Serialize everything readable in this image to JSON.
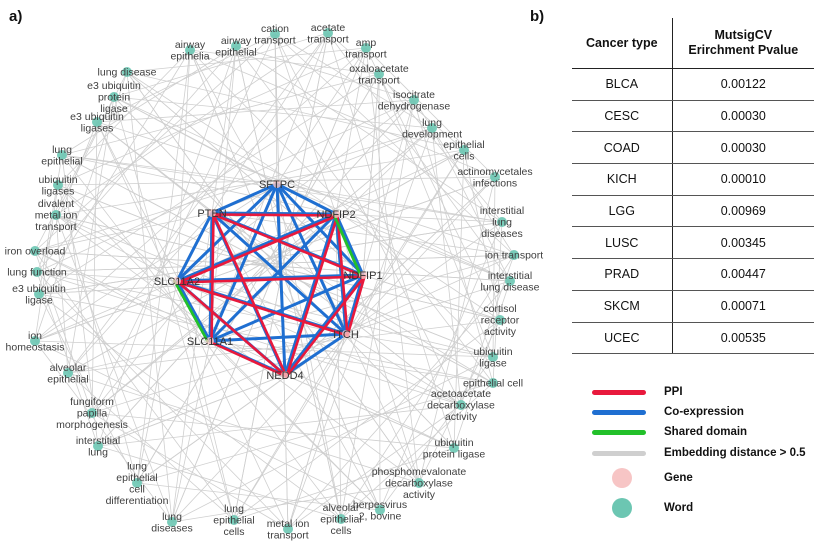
{
  "panel_a_label": "a)",
  "panel_b_label": "b)",
  "network": {
    "genes": [
      {
        "id": "SFTPC",
        "label": "SFTPC"
      },
      {
        "id": "PTEN",
        "label": "PTEN"
      },
      {
        "id": "NDFIP2",
        "label": "NDFIP2"
      },
      {
        "id": "NDFIP1",
        "label": "NDFIP1"
      },
      {
        "id": "SLC11A2",
        "label": "SLC11A2"
      },
      {
        "id": "SLC11A1",
        "label": "SLC11A1"
      },
      {
        "id": "ITCH",
        "label": "ITCH"
      },
      {
        "id": "NEDD4",
        "label": "NEDD4"
      }
    ],
    "words": [
      {
        "label": "cation\ntransport"
      },
      {
        "label": "acetate\ntransport"
      },
      {
        "label": "amp\ntransport"
      },
      {
        "label": "oxaloacetate\ntransport"
      },
      {
        "label": "isocitrate\ndehydrogenase"
      },
      {
        "label": "lung\ndevelopment"
      },
      {
        "label": "epithelial\ncells"
      },
      {
        "label": "actinomycetales\ninfections"
      },
      {
        "label": "interstitial\nlung\ndiseases"
      },
      {
        "label": "ion transport"
      },
      {
        "label": "interstitial\nlung disease"
      },
      {
        "label": "cortisol\nreceptor\nactivity"
      },
      {
        "label": "ubiquitin\nligase"
      },
      {
        "label": "epithelial cell"
      },
      {
        "label": "acetoacetate\ndecarboxylase\nactivity"
      },
      {
        "label": "ubiquitin\nprotein ligase"
      },
      {
        "label": "phosphomevalonate\ndecarboxylase\nactivity"
      },
      {
        "label": "herpesvirus\n2, bovine"
      },
      {
        "label": "alveolar\nepithelial\ncells"
      },
      {
        "label": "metal ion\ntransport"
      },
      {
        "label": "lung\nepithelial\ncells"
      },
      {
        "label": "lung\ndiseases"
      },
      {
        "label": "lung\nepithelial\ncell\ndifferentiation"
      },
      {
        "label": "interstitial\nlung"
      },
      {
        "label": "fungiform\npapilla\nmorphogenesis"
      },
      {
        "label": "alveolar\nepithelial"
      },
      {
        "label": "ion\nhomeostasis"
      },
      {
        "label": "e3 ubiquitin\nligase"
      },
      {
        "label": "lung function"
      },
      {
        "label": "iron overload"
      },
      {
        "label": "divalent\nmetal ion\ntransport"
      },
      {
        "label": "ubiquitin\nligases"
      },
      {
        "label": "lung\nepithelial"
      },
      {
        "label": "e3 ubiquitin\nligases"
      },
      {
        "label": "e3 ubiquitin\nprotein\nligase"
      },
      {
        "label": "lung disease"
      },
      {
        "label": "airway\nepithelia"
      },
      {
        "label": "airway\nepithelial"
      }
    ]
  },
  "table": {
    "headers": [
      "Cancer type",
      "MutsigCV\nErirchment Pvalue"
    ],
    "rows": [
      [
        "BLCA",
        "0.00122"
      ],
      [
        "CESC",
        "0.00030"
      ],
      [
        "COAD",
        "0.00030"
      ],
      [
        "KICH",
        "0.00010"
      ],
      [
        "LGG",
        "0.00969"
      ],
      [
        "LUSC",
        "0.00345"
      ],
      [
        "PRAD",
        "0.00447"
      ],
      [
        "SKCM",
        "0.00071"
      ],
      [
        "UCEC",
        "0.00535"
      ]
    ]
  },
  "legend": [
    {
      "label": "PPI",
      "kind": "line",
      "color": "#e8193c"
    },
    {
      "label": "Co-expression",
      "kind": "line",
      "color": "#1f6fd1"
    },
    {
      "label": "Shared domain",
      "kind": "line",
      "color": "#22c02a"
    },
    {
      "label": "Embedding distance > 0.5",
      "kind": "line",
      "color": "#cfcfcf"
    },
    {
      "label": "Gene",
      "kind": "dot",
      "color": "#f7c5c5"
    },
    {
      "label": "Word",
      "kind": "dot",
      "color": "#6cc6b2"
    }
  ],
  "colors": {
    "ppi": "#e8193c",
    "coexpression": "#1f6fd1",
    "shared_domain": "#22c02a",
    "embedding": "#cfcfcf",
    "gene_node": "#f7c5c5",
    "word_node": "#6cc6b2"
  }
}
